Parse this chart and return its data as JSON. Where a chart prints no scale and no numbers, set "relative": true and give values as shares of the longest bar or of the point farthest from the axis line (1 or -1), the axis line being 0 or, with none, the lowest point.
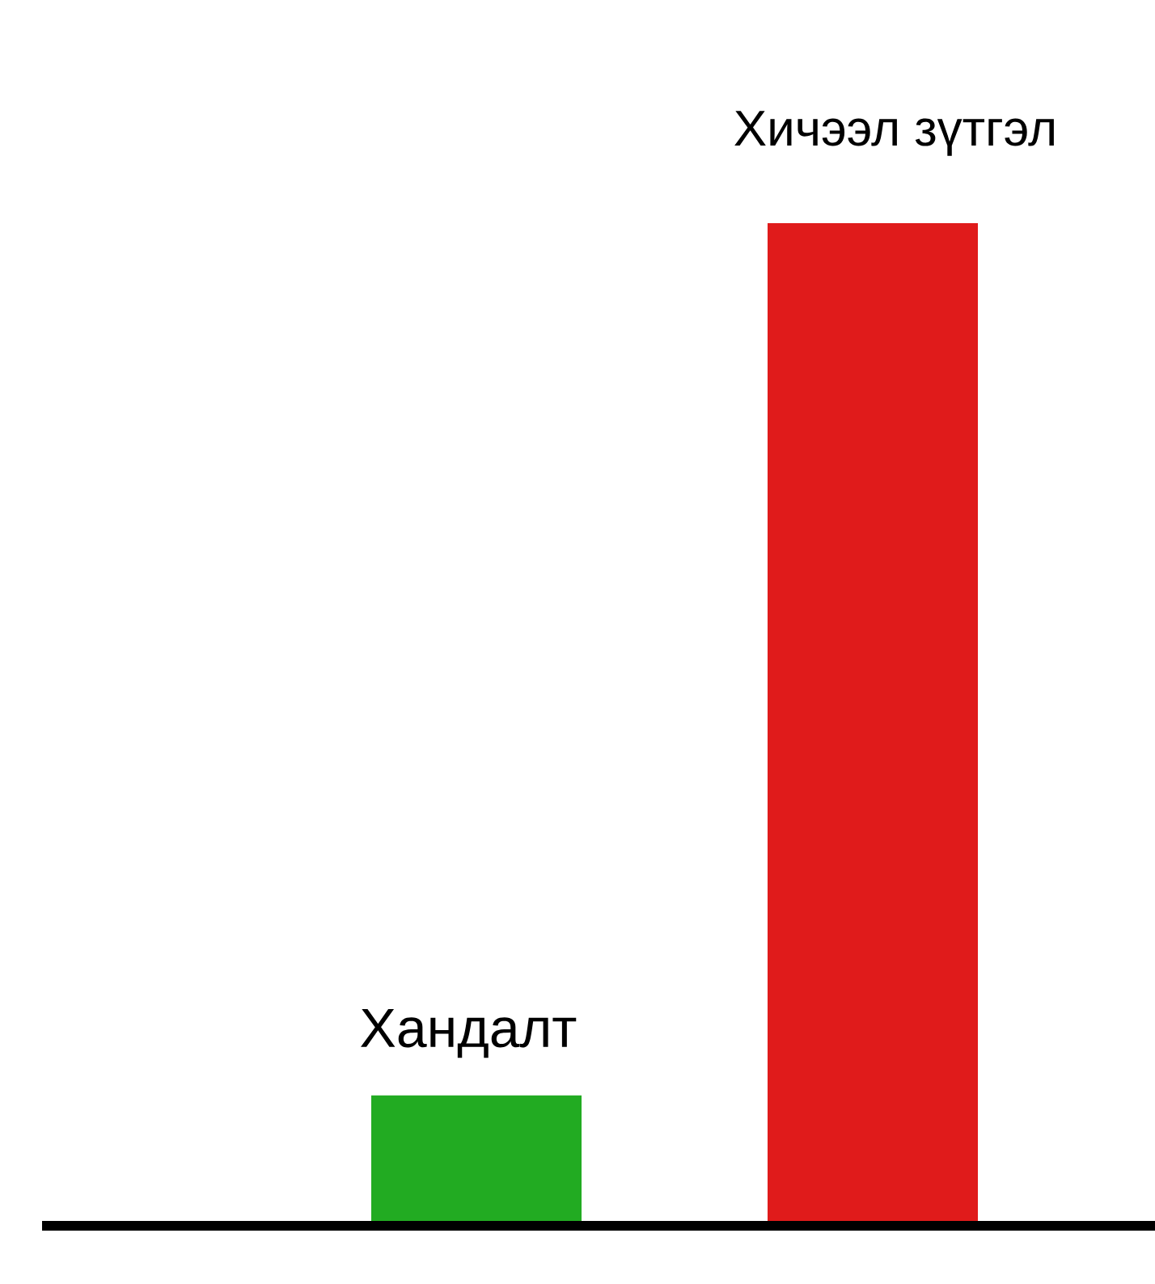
{
  "chart_data": {
    "type": "bar",
    "relative": true,
    "categories": [
      "Хандалт",
      "Хичээл зүтгэл"
    ],
    "values": [
      0.13,
      1
    ],
    "colors": [
      "#22ab22",
      "#e01b1b"
    ]
  }
}
